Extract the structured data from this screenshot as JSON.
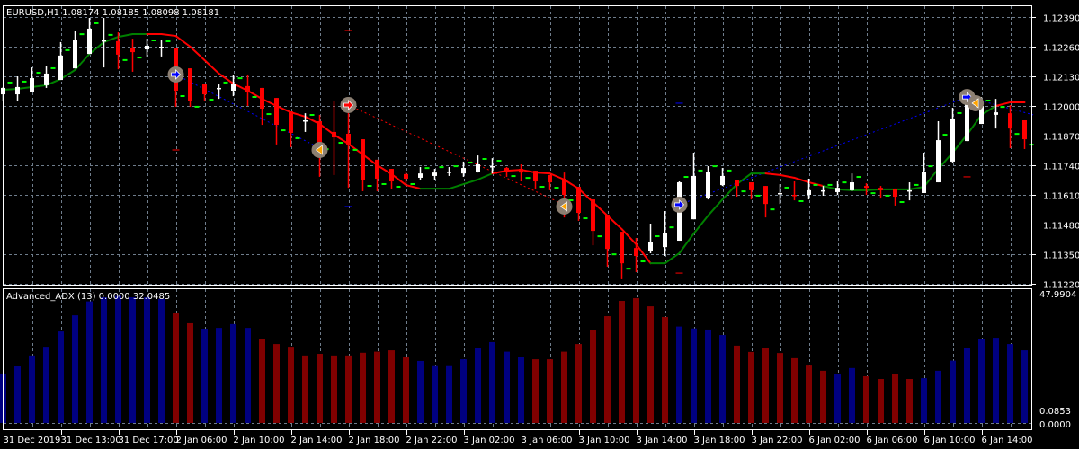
{
  "header": {
    "symbol_label": "EURUSD,H1  1.08174 1.08185 1.08098 1.08181"
  },
  "indicator": {
    "label": "Advanced_ADX (13) 0.0000 32.0485",
    "axis_max_label": "47.9904",
    "axis_min_labels": [
      "0.0000",
      "0.0853"
    ]
  },
  "colors": {
    "background": "#000000",
    "grid": "#6f7d8c",
    "bull_candle": "#ffffff",
    "bear_candle": "#ff0000",
    "ma_up": "#008000",
    "ma_down": "#ff0000",
    "adx_up": "#000080",
    "adx_down": "#800000",
    "level_marker": "#00ff00"
  },
  "chart_data": [
    {
      "type": "candlestick",
      "title": "EURUSD,H1",
      "ylim": [
        1.1122,
        1.1239
      ],
      "y_ticks": [
        "1.12390",
        "1.12260",
        "1.12130",
        "1.12000",
        "1.11870",
        "1.11740",
        "1.11610",
        "1.11480",
        "1.11350",
        "1.11220"
      ],
      "x_tick_labels": [
        {
          "bar": 0,
          "label": "31 Dec 2019"
        },
        {
          "bar": 4,
          "label": "31 Dec 13:00"
        },
        {
          "bar": 8,
          "label": "31 Dec 17:00"
        },
        {
          "bar": 12,
          "label": "2 Jan 06:00"
        },
        {
          "bar": 16,
          "label": "2 Jan 10:00"
        },
        {
          "bar": 20,
          "label": "2 Jan 14:00"
        },
        {
          "bar": 24,
          "label": "2 Jan 18:00"
        },
        {
          "bar": 28,
          "label": "2 Jan 22:00"
        },
        {
          "bar": 32,
          "label": "3 Jan 02:00"
        },
        {
          "bar": 36,
          "label": "3 Jan 06:00"
        },
        {
          "bar": 40,
          "label": "3 Jan 10:00"
        },
        {
          "bar": 44,
          "label": "3 Jan 14:00"
        },
        {
          "bar": 48,
          "label": "3 Jan 18:00"
        },
        {
          "bar": 52,
          "label": "3 Jan 22:00"
        },
        {
          "bar": 56,
          "label": "6 Jan 02:00"
        },
        {
          "bar": 60,
          "label": "6 Jan 06:00"
        },
        {
          "bar": 64,
          "label": "6 Jan 10:00"
        },
        {
          "bar": 68,
          "label": "6 Jan 14:00"
        }
      ],
      "grid": true,
      "ohlc": [
        [
          1.12051,
          1.12083,
          1.1202,
          1.12079
        ],
        [
          1.12051,
          1.1213,
          1.1202,
          1.12083
        ],
        [
          1.12063,
          1.12169,
          1.12063,
          1.12122
        ],
        [
          1.12091,
          1.12177,
          1.12079,
          1.12142
        ],
        [
          1.12114,
          1.1228,
          1.12114,
          1.12221
        ],
        [
          1.12165,
          1.12327,
          1.12165,
          1.12291
        ],
        [
          1.12228,
          1.12386,
          1.12228,
          1.12339
        ],
        [
          1.12284,
          1.12386,
          1.12169,
          1.12288
        ],
        [
          1.12284,
          1.12323,
          1.12161,
          1.12225
        ],
        [
          1.12256,
          1.12295,
          1.1215,
          1.12236
        ],
        [
          1.12248,
          1.12295,
          1.12217,
          1.12264
        ],
        [
          1.12256,
          1.12288,
          1.12217,
          1.1226
        ],
        [
          1.12256,
          1.12256,
          1.11996,
          1.12067
        ],
        [
          1.12165,
          1.12165,
          1.11996,
          1.1202
        ],
        [
          1.12095,
          1.12095,
          1.12024,
          1.12051
        ],
        [
          1.12075,
          1.12098,
          1.12031,
          1.12079
        ],
        [
          1.12067,
          1.12134,
          1.12043,
          1.12098
        ],
        [
          1.12087,
          1.12138,
          1.12,
          1.12063
        ],
        [
          1.12079,
          1.12079,
          1.11917,
          1.11988
        ],
        [
          1.12035,
          1.12035,
          1.11831,
          1.11917
        ],
        [
          1.11976,
          1.11976,
          1.11819,
          1.11882
        ],
        [
          1.11933,
          1.11968,
          1.11886,
          1.11937
        ],
        [
          1.11933,
          1.11961,
          1.11689,
          1.11834
        ],
        [
          1.11886,
          1.1202,
          1.11697,
          1.11862
        ],
        [
          1.11878,
          1.12024,
          1.11641,
          1.11831
        ],
        [
          1.11854,
          1.11854,
          1.11626,
          1.11673
        ],
        [
          1.11764,
          1.11764,
          1.11626,
          1.11681
        ],
        [
          1.11724,
          1.11724,
          1.11634,
          1.11669
        ],
        [
          1.11701,
          1.11708,
          1.11657,
          1.11681
        ],
        [
          1.11685,
          1.11732,
          1.11677,
          1.11704
        ],
        [
          1.11693,
          1.11724,
          1.11677,
          1.11708
        ],
        [
          1.11708,
          1.11732,
          1.11693,
          1.11712
        ],
        [
          1.11704,
          1.11756,
          1.11689,
          1.11728
        ],
        [
          1.11712,
          1.11783,
          1.11708,
          1.11744
        ],
        [
          1.11732,
          1.11771,
          1.11704,
          1.11736
        ],
        [
          1.11728,
          1.11732,
          1.11689,
          1.11716
        ],
        [
          1.11724,
          1.11744,
          1.11669,
          1.11708
        ],
        [
          1.11716,
          1.11716,
          1.11634,
          1.11669
        ],
        [
          1.11697,
          1.11697,
          1.1163,
          1.11665
        ],
        [
          1.11681,
          1.11708,
          1.11511,
          1.1161
        ],
        [
          1.11645,
          1.11645,
          1.11496,
          1.11531
        ],
        [
          1.1159,
          1.1159,
          1.11389,
          1.11452
        ],
        [
          1.11523,
          1.11523,
          1.11295,
          1.11373
        ],
        [
          1.11448,
          1.11448,
          1.1124,
          1.1131
        ],
        [
          1.11377,
          1.11421,
          1.11271,
          1.11342
        ],
        [
          1.11362,
          1.11484,
          1.11354,
          1.11405
        ],
        [
          1.11381,
          1.11539,
          1.11342,
          1.11444
        ],
        [
          1.11409,
          1.11669,
          1.11409,
          1.11665
        ],
        [
          1.11503,
          1.11795,
          1.11503,
          1.11693
        ],
        [
          1.11594,
          1.11736,
          1.1159,
          1.11712
        ],
        [
          1.11653,
          1.11728,
          1.11649,
          1.11693
        ],
        [
          1.11673,
          1.11677,
          1.11602,
          1.11649
        ],
        [
          1.11665,
          1.11665,
          1.1159,
          1.1163
        ],
        [
          1.11649,
          1.11649,
          1.11511,
          1.1157
        ],
        [
          1.11614,
          1.11657,
          1.1157,
          1.11618
        ],
        [
          1.1161,
          1.11669,
          1.11586,
          1.11606
        ],
        [
          1.1161,
          1.11681,
          1.1159,
          1.1163
        ],
        [
          1.11626,
          1.11649,
          1.11606,
          1.1163
        ],
        [
          1.11622,
          1.11669,
          1.1161,
          1.11641
        ],
        [
          1.1163,
          1.11704,
          1.11626,
          1.11665
        ],
        [
          1.11649,
          1.11661,
          1.1161,
          1.11641
        ],
        [
          1.11641,
          1.11649,
          1.11594,
          1.1163
        ],
        [
          1.11634,
          1.11634,
          1.11563,
          1.11602
        ],
        [
          1.11626,
          1.11665,
          1.11586,
          1.1163
        ],
        [
          1.11618,
          1.11795,
          1.11618,
          1.11712
        ],
        [
          1.11665,
          1.11933,
          1.11665,
          1.1185
        ],
        [
          1.11756,
          1.11992,
          1.11752,
          1.11945
        ],
        [
          1.11846,
          1.12031,
          1.11846,
          1.12008
        ],
        [
          1.11921,
          1.12039,
          1.11921,
          1.12
        ],
        [
          1.11961,
          1.12031,
          1.11901,
          1.11972
        ],
        [
          1.11968,
          1.12004,
          1.11815,
          1.11901
        ],
        [
          1.11937,
          1.11937,
          1.11811,
          1.11854
        ]
      ],
      "ma": [
        1.12071,
        1.12075,
        1.12083,
        1.12091,
        1.12118,
        1.12158,
        1.12228,
        1.1228,
        1.12303,
        1.12315,
        1.12315,
        1.12315,
        1.12307,
        1.1226,
        1.12201,
        1.12142,
        1.12098,
        1.12067,
        1.12031,
        1.12,
        1.11972,
        1.11953,
        1.11921,
        1.11874,
        1.11834,
        1.11787,
        1.1174,
        1.11701,
        1.11653,
        1.11637,
        1.11637,
        1.11637,
        1.11657,
        1.11677,
        1.11704,
        1.11716,
        1.1172,
        1.11708,
        1.11704,
        1.11677,
        1.11637,
        1.11578,
        1.11519,
        1.1146,
        1.11393,
        1.1131,
        1.1131,
        1.11354,
        1.1144,
        1.11519,
        1.1159,
        1.11657,
        1.11704,
        1.11704,
        1.11697,
        1.11685,
        1.11665,
        1.11649,
        1.11634,
        1.1163,
        1.1163,
        1.11634,
        1.11634,
        1.11634,
        1.11645,
        1.11724,
        1.11795,
        1.11874,
        1.11961,
        1.12,
        1.12016,
        1.12016
      ],
      "ma_trend": [
        "up",
        "up",
        "up",
        "up",
        "up",
        "up",
        "up",
        "up",
        "up",
        "up",
        "up",
        "down",
        "down",
        "down",
        "down",
        "down",
        "down",
        "down",
        "down",
        "down",
        "down",
        "down",
        "down",
        "down",
        "down",
        "down",
        "down",
        "down",
        "down",
        "down",
        "up",
        "up",
        "up",
        "up",
        "up",
        "down",
        "down",
        "down",
        "down",
        "down",
        "down",
        "down",
        "down",
        "down",
        "down",
        "down",
        "up",
        "up",
        "up",
        "up",
        "up",
        "up",
        "up",
        "up",
        "down",
        "down",
        "down",
        "down",
        "up",
        "up",
        "up",
        "up",
        "up",
        "up",
        "up",
        "up",
        "up",
        "up",
        "up",
        "up",
        "down",
        "down"
      ],
      "signals": [
        {
          "bar": 12,
          "price": 1.12138,
          "type": "blue-arrow"
        },
        {
          "bar": 22,
          "price": 1.11807,
          "type": "orange-triangle"
        },
        {
          "bar": 24,
          "price": 1.12004,
          "type": "red-arrow"
        },
        {
          "bar": 39,
          "price": 1.11559,
          "type": "orange-triangle"
        },
        {
          "bar": 47,
          "price": 1.11567,
          "type": "blue-arrow"
        },
        {
          "bar": 67,
          "price": 1.12039,
          "type": "blue-arrow"
        },
        {
          "bar": 67.6,
          "price": 1.12012,
          "type": "orange-triangle"
        }
      ],
      "dotted_lines": [
        {
          "color": "blue",
          "from": [
            12,
            1.12138
          ],
          "to": [
            22,
            1.11815
          ]
        },
        {
          "color": "red",
          "from": [
            24,
            1.12004
          ],
          "to": [
            39,
            1.11567
          ]
        },
        {
          "color": "blue",
          "from": [
            47,
            1.11567
          ],
          "to": [
            67,
            1.12039
          ]
        },
        {
          "color": "blue",
          "from": [
            67,
            1.12039
          ],
          "to": [
            71.6,
            1.11961
          ]
        }
      ],
      "markers": [
        {
          "bar": 12,
          "price": 1.11807,
          "color": "red"
        },
        {
          "bar": 24,
          "price": 1.12331,
          "color": "red"
        },
        {
          "bar": 24,
          "price": 1.11559,
          "color": "blue"
        },
        {
          "bar": 47,
          "price": 1.12012,
          "color": "blue"
        },
        {
          "bar": 47,
          "price": 1.11267,
          "color": "red"
        },
        {
          "bar": 67,
          "price": 1.11689,
          "color": "red"
        }
      ]
    },
    {
      "type": "bar",
      "title": "Advanced_ADX (13)",
      "ylim": [
        0,
        47.9904
      ],
      "values": [
        18.1,
        20.7,
        24.7,
        27.9,
        33.5,
        39.4,
        44.5,
        46.0,
        46.5,
        46.0,
        46.0,
        45.4,
        40.4,
        36.5,
        34.5,
        34.8,
        36.2,
        34.8,
        30.6,
        28.9,
        27.9,
        24.7,
        25.3,
        24.7,
        24.7,
        25.7,
        26.1,
        26.6,
        24.3,
        22.7,
        20.8,
        20.8,
        23.3,
        27.4,
        29.6,
        26.1,
        24.3,
        23.3,
        23.3,
        26.1,
        28.9,
        33.9,
        39.1,
        44.7,
        45.7,
        42.7,
        38.8,
        35.3,
        34.6,
        34.2,
        32.2,
        28.3,
        26.0,
        27.3,
        25.6,
        23.7,
        21.0,
        19.1,
        17.8,
        20.1,
        17.1,
        16.1,
        17.8,
        16.1,
        16.4,
        19.1,
        22.8,
        27.3,
        30.6,
        31.2,
        28.9,
        26.6
      ],
      "direction": [
        "up",
        "up",
        "up",
        "up",
        "up",
        "up",
        "up",
        "up",
        "up",
        "up",
        "up",
        "up",
        "down",
        "down",
        "up",
        "up",
        "up",
        "up",
        "down",
        "down",
        "down",
        "down",
        "down",
        "down",
        "down",
        "down",
        "down",
        "down",
        "down",
        "up",
        "up",
        "up",
        "up",
        "up",
        "up",
        "up",
        "up",
        "down",
        "down",
        "down",
        "down",
        "down",
        "down",
        "down",
        "down",
        "down",
        "down",
        "up",
        "up",
        "up",
        "up",
        "down",
        "down",
        "down",
        "down",
        "down",
        "down",
        "down",
        "up",
        "up",
        "down",
        "down",
        "down",
        "down",
        "up",
        "up",
        "up",
        "up",
        "up",
        "up",
        "up",
        "up"
      ]
    }
  ]
}
